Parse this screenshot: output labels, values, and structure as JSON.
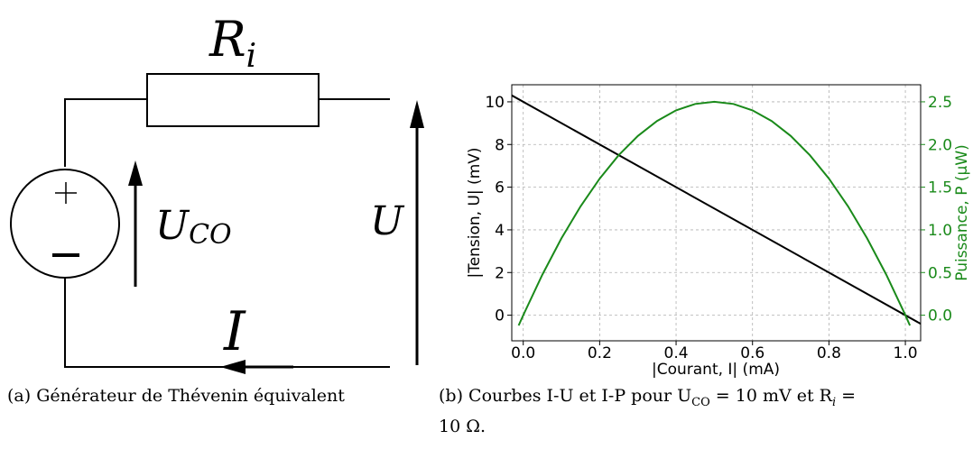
{
  "diagram": {
    "resistor_label": {
      "main": "R",
      "sub": "i"
    },
    "source_plus": "+",
    "source_minus": "−",
    "source_voltage_label": {
      "main": "U",
      "sub": "CO"
    },
    "output_voltage_label": "U",
    "current_label": "I"
  },
  "chart_data": {
    "type": "line",
    "xlabel": "|Courant, I| (mA)",
    "ylabel": "|Tension, U| (mV)",
    "ylabel_right": "Puissance, P (μW)",
    "xlim": [
      -0.03,
      1.04
    ],
    "ylim": [
      -1.2,
      10.8
    ],
    "ylim_right": [
      -0.3,
      2.7
    ],
    "x_ticks": [
      "0.0",
      "0.2",
      "0.4",
      "0.6",
      "0.8",
      "1.0"
    ],
    "x_tick_values": [
      0.0,
      0.2,
      0.4,
      0.6,
      0.8,
      1.0
    ],
    "y_ticks": [
      "0",
      "2",
      "4",
      "6",
      "8",
      "10"
    ],
    "y_tick_values": [
      0,
      2,
      4,
      6,
      8,
      10
    ],
    "y_right_ticks": [
      "0.0",
      "0.5",
      "1.0",
      "1.5",
      "2.0",
      "2.5"
    ],
    "y_right_tick_values": [
      0.0,
      0.5,
      1.0,
      1.5,
      2.0,
      2.5
    ],
    "grid": true,
    "series": [
      {
        "axis": "left",
        "color": "#000000",
        "x": [
          -0.03,
          1.04
        ],
        "y": [
          10.3,
          -0.4
        ]
      },
      {
        "axis": "right",
        "color": "#1a8a1a",
        "x": [
          -0.012,
          0.0,
          0.05,
          0.1,
          0.15,
          0.2,
          0.25,
          0.3,
          0.35,
          0.4,
          0.45,
          0.5,
          0.55,
          0.6,
          0.65,
          0.7,
          0.75,
          0.8,
          0.85,
          0.9,
          0.95,
          1.0,
          1.012
        ],
        "y": [
          -0.12,
          0.0,
          0.475,
          0.9,
          1.275,
          1.6,
          1.875,
          2.1,
          2.275,
          2.4,
          2.475,
          2.5,
          2.475,
          2.4,
          2.275,
          2.1,
          1.875,
          1.6,
          1.275,
          0.9,
          0.475,
          0.0,
          -0.12
        ]
      }
    ]
  },
  "captions": {
    "a": "(a) Générateur de Thévenin équivalent",
    "b_line1_pre": "(b) Courbes I-U et I-P pour U",
    "b_line1_sub1": "CO",
    "b_line1_mid": " = 10 mV et R",
    "b_line1_sub2": "i",
    "b_line1_post": " =",
    "b_line2": "10 Ω."
  }
}
